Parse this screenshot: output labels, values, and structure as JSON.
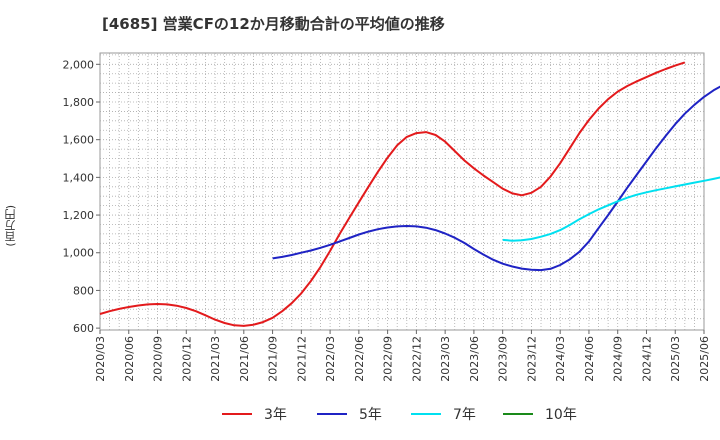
{
  "chart_data": {
    "type": "line",
    "title": "[4685]  営業CFの12か月移動合計の平均値の推移",
    "ylabel": "(百万円)",
    "xlabel": "",
    "ylim": [
      590,
      2060
    ],
    "yticks": [
      600,
      800,
      1000,
      1200,
      1400,
      1600,
      1800,
      2000
    ],
    "ytick_labels": [
      "600",
      "800",
      "1,000",
      "1,200",
      "1,400",
      "1,600",
      "1,800",
      "2,000"
    ],
    "xtick_labels": [
      "2020/03",
      "2020/06",
      "2020/09",
      "2020/12",
      "2021/03",
      "2021/06",
      "2021/09",
      "2021/12",
      "2022/03",
      "2022/06",
      "2022/09",
      "2022/12",
      "2023/03",
      "2023/06",
      "2023/09",
      "2023/12",
      "2024/03",
      "2024/06",
      "2024/09",
      "2024/12",
      "2025/03",
      "2025/06"
    ],
    "grid": true,
    "legend_position": "bottom",
    "series": [
      {
        "name": "3年",
        "color": "#e31a1c",
        "start_index": 0,
        "values": [
          675,
          690,
          702,
          712,
          720,
          726,
          728,
          726,
          719,
          707,
          690,
          668,
          645,
          627,
          615,
          612,
          618,
          632,
          655,
          690,
          732,
          785,
          850,
          925,
          1010,
          1100,
          1185,
          1268,
          1350,
          1430,
          1505,
          1570,
          1615,
          1635,
          1640,
          1625,
          1590,
          1540,
          1490,
          1448,
          1410,
          1375,
          1340,
          1315,
          1305,
          1318,
          1350,
          1405,
          1475,
          1555,
          1635,
          1705,
          1765,
          1815,
          1855,
          1885,
          1910,
          1932,
          1955,
          1975,
          1993,
          2010
        ]
      },
      {
        "name": "5年",
        "color": "#1f23c4",
        "start_index": 18,
        "values": [
          970,
          978,
          988,
          1000,
          1012,
          1026,
          1042,
          1060,
          1078,
          1097,
          1112,
          1125,
          1134,
          1140,
          1142,
          1140,
          1133,
          1120,
          1102,
          1080,
          1052,
          1020,
          990,
          963,
          942,
          927,
          916,
          910,
          908,
          915,
          935,
          965,
          1005,
          1060,
          1130,
          1200,
          1272,
          1345,
          1415,
          1485,
          1555,
          1620,
          1682,
          1738,
          1785,
          1827,
          1862,
          1890
        ]
      },
      {
        "name": "7年",
        "color": "#00e0f0",
        "start_index": 42,
        "values": [
          1068,
          1064,
          1066,
          1073,
          1085,
          1100,
          1120,
          1147,
          1178,
          1205,
          1230,
          1252,
          1273,
          1292,
          1308,
          1321,
          1332,
          1342,
          1352,
          1362,
          1372,
          1382,
          1392,
          1403
        ]
      },
      {
        "name": "10年",
        "color": "#1a8a1a",
        "start_index": 0,
        "values": []
      }
    ]
  }
}
